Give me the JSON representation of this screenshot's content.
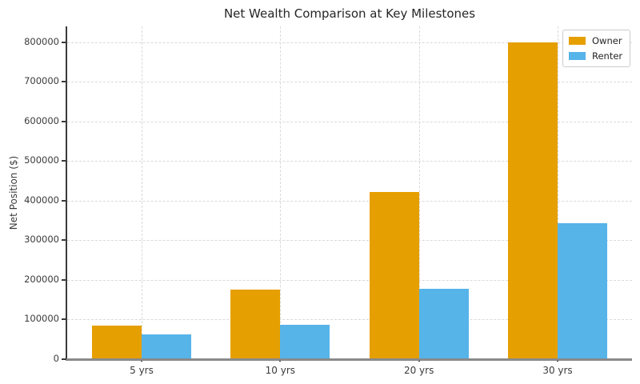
{
  "chart_data": {
    "type": "bar",
    "title": "Net Wealth Comparison at Key Milestones",
    "xlabel": "",
    "ylabel": "Net Position ($)",
    "categories": [
      "5 yrs",
      "10 yrs",
      "20 yrs",
      "30 yrs"
    ],
    "series": [
      {
        "name": "Owner",
        "color": "#E69F00",
        "values": [
          85000,
          176000,
          422000,
          800000
        ]
      },
      {
        "name": "Renter",
        "color": "#56B4E9",
        "values": [
          62000,
          86000,
          178000,
          344000
        ]
      }
    ],
    "ylim": [
      0,
      840000
    ],
    "yticks": [
      0,
      100000,
      200000,
      300000,
      400000,
      500000,
      600000,
      700000,
      800000
    ],
    "ytick_labels": [
      "0",
      "100000",
      "200000",
      "300000",
      "400000",
      "500000",
      "600000",
      "700000",
      "800000"
    ],
    "grid": "dashed-both-axes",
    "legend_position": "upper right",
    "legend_labels": [
      "Owner",
      "Renter"
    ]
  },
  "colors": {
    "owner": "#E69F00",
    "renter": "#56B4E9",
    "grid": "#d9d9d9",
    "spine": "#3a3a3a",
    "bottom_axis": "#8a8a8a",
    "text": "#3b3b3b",
    "title": "#262626",
    "legend_border": "#cccccc",
    "background": "#ffffff"
  }
}
